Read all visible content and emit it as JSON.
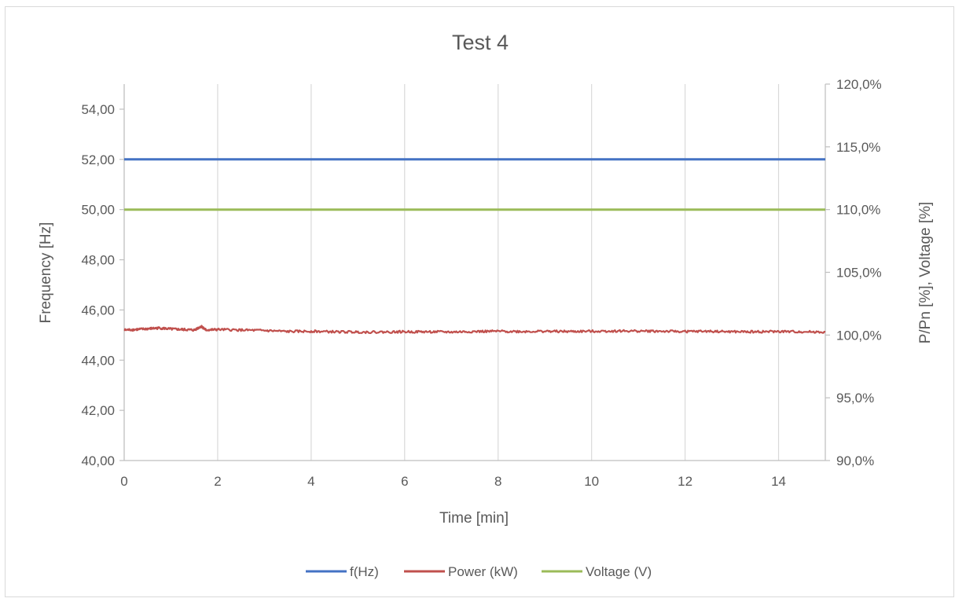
{
  "chart_data": {
    "type": "line",
    "title": "Test 4",
    "xlabel": "Time [min]",
    "ylabel": "Frequency [Hz]",
    "y2label": "P/Pn [%], Voltage [%]",
    "xlim": [
      0,
      15
    ],
    "ylim": [
      40,
      55
    ],
    "y2lim": [
      90,
      120
    ],
    "x_ticks": [
      0,
      2,
      4,
      6,
      8,
      10,
      12,
      14
    ],
    "x_tick_labels": [
      "0",
      "2",
      "4",
      "6",
      "8",
      "10",
      "12",
      "14"
    ],
    "y_ticks": [
      40,
      42,
      44,
      46,
      48,
      50,
      52,
      54
    ],
    "y_tick_labels": [
      "40,00",
      "42,00",
      "44,00",
      "46,00",
      "48,00",
      "50,00",
      "52,00",
      "54,00"
    ],
    "y2_ticks": [
      90,
      95,
      100,
      105,
      110,
      115,
      120
    ],
    "y2_tick_labels": [
      "90,0%",
      "95,0%",
      "100,0%",
      "105,0%",
      "110,0%",
      "115,0%",
      "120,0%"
    ],
    "grid": "vertical",
    "legend_position": "bottom",
    "series": [
      {
        "name": "f(Hz)",
        "axis": "left",
        "color": "#4472c4",
        "x": [
          0,
          15
        ],
        "y": [
          52.0,
          52.0
        ]
      },
      {
        "name": "Power (kW)",
        "axis": "left",
        "color": "#c0504d",
        "x": [
          0,
          0.25,
          0.5,
          0.75,
          1.0,
          1.25,
          1.5,
          1.65,
          1.75,
          2.0,
          2.5,
          3.0,
          3.5,
          4.0,
          4.5,
          5.0,
          5.5,
          6.0,
          6.5,
          7.0,
          7.5,
          8.0,
          8.5,
          9.0,
          9.5,
          10.0,
          10.5,
          11.0,
          11.5,
          12.0,
          12.5,
          13.0,
          13.5,
          14.0,
          14.5,
          15.0
        ],
        "y": [
          45.2,
          45.22,
          45.25,
          45.28,
          45.24,
          45.22,
          45.2,
          45.35,
          45.2,
          45.22,
          45.2,
          45.18,
          45.14,
          45.15,
          45.13,
          45.12,
          45.12,
          45.13,
          45.13,
          45.12,
          45.14,
          45.15,
          45.14,
          45.15,
          45.14,
          45.15,
          45.16,
          45.16,
          45.15,
          45.14,
          45.15,
          45.13,
          45.13,
          45.14,
          45.13,
          45.12
        ]
      },
      {
        "name": "Voltage (V)",
        "axis": "left",
        "color": "#9bbb59",
        "x": [
          0,
          15
        ],
        "y": [
          50.0,
          50.0
        ]
      }
    ]
  }
}
